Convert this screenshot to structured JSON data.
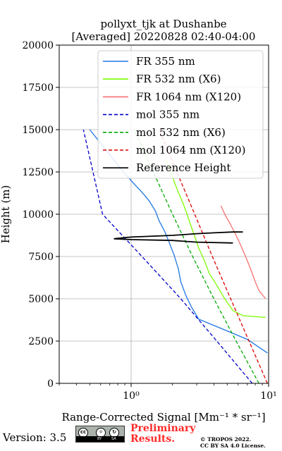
{
  "chart_data": {
    "type": "line",
    "title": "pollyxt_tjk at Dushanbe",
    "subtitle": "[Averaged] 20220828 02:40-04:00",
    "xlabel": "Range-Corrected Signal [Mm⁻¹ * sr⁻¹]",
    "ylabel": "Height (m)",
    "xscale": "log",
    "xlim": [
      0.3,
      10
    ],
    "ylim": [
      0,
      20000
    ],
    "xticks": [
      {
        "value": 1,
        "label": "10⁰"
      },
      {
        "value": 10,
        "label": "10¹"
      }
    ],
    "yticks": [
      0,
      2500,
      5000,
      7500,
      10000,
      12500,
      15000,
      17500,
      20000
    ],
    "ytick_labels": [
      "0",
      "2500",
      "5000",
      "7500",
      "10000",
      "12500",
      "15000",
      "17500",
      "20000"
    ],
    "grid": true,
    "legend_position": "top-right",
    "series": [
      {
        "name": "FR 355 nm",
        "color": "#1f77e4",
        "style": "solid",
        "x": [
          9.8,
          7.0,
          5.0,
          3.8,
          3.1,
          2.75,
          2.5,
          2.3,
          2.2,
          2.05,
          1.9,
          1.75,
          1.6,
          1.5,
          1.35,
          1.2,
          1.05,
          0.9,
          0.75,
          0.6,
          0.5
        ],
        "y": [
          1800,
          2600,
          3100,
          3500,
          3800,
          4500,
          5200,
          6000,
          6800,
          7600,
          8300,
          9000,
          9600,
          10200,
          10800,
          11300,
          11800,
          12400,
          13200,
          14200,
          15000
        ]
      },
      {
        "name": "FR 532 nm (X6)",
        "color": "#7cfc00",
        "style": "solid",
        "x": [
          9.5,
          6.5,
          5.5,
          4.8,
          4.2,
          3.7,
          3.4,
          3.1,
          2.9,
          2.7,
          2.55,
          2.4,
          2.2,
          2.0,
          1.8
        ],
        "y": [
          3900,
          4000,
          4300,
          5000,
          5800,
          6500,
          7300,
          8000,
          8700,
          9400,
          10000,
          10600,
          11300,
          12200,
          13200
        ]
      },
      {
        "name": "FR 1064 nm (X120)",
        "color": "#f87171",
        "style": "solid",
        "x": [
          9.5,
          8.5,
          8.0,
          7.6,
          7.2,
          6.8,
          6.4,
          6.0,
          5.6,
          5.2,
          4.8,
          4.5
        ],
        "y": [
          5000,
          5500,
          6000,
          6500,
          7000,
          7500,
          8000,
          8500,
          9000,
          9500,
          10000,
          10500
        ]
      },
      {
        "name": "mol 355 nm",
        "color": "#0000cc",
        "style": "dashed",
        "x": [
          7.6,
          4.2,
          2.3,
          1.2,
          0.62,
          0.45
        ],
        "y": [
          0,
          2500,
          5000,
          7500,
          10000,
          15000
        ]
      },
      {
        "name": "mol 532 nm (X6)",
        "color": "#00aa00",
        "style": "dashed",
        "x": [
          8.5,
          5.8,
          4.0,
          2.8,
          2.0,
          1.45,
          1.05
        ],
        "y": [
          0,
          2500,
          5000,
          7500,
          10000,
          12500,
          15000
        ]
      },
      {
        "name": "mol 1064 nm (X120)",
        "color": "#e00000",
        "style": "dashed",
        "x": [
          9.8,
          7.2,
          5.3,
          3.9,
          2.9,
          2.15,
          1.6
        ],
        "y": [
          0,
          2500,
          5000,
          7500,
          10000,
          12500,
          15000
        ]
      },
      {
        "name": "Reference Height",
        "color": "#000000",
        "style": "solid",
        "x": [
          5.5,
          3.0,
          2.0,
          1.0,
          0.75,
          1.0,
          2.0,
          3.0,
          4.0,
          5.5,
          6.5
        ],
        "y": [
          8300,
          8350,
          8450,
          8500,
          8550,
          8650,
          8750,
          8850,
          8900,
          8950,
          8950
        ]
      }
    ]
  },
  "footer": {
    "version": "Version: 3.5",
    "cc_badge": {
      "by": "BY",
      "sa": "SA",
      "icon": "cc-by-sa-badge"
    },
    "preliminary_line1": "Preliminary",
    "preliminary_line2": "Results.",
    "copyright_line1": "© TROPOS 2022.",
    "copyright_line2": "CC BY SA 4.0 License."
  }
}
